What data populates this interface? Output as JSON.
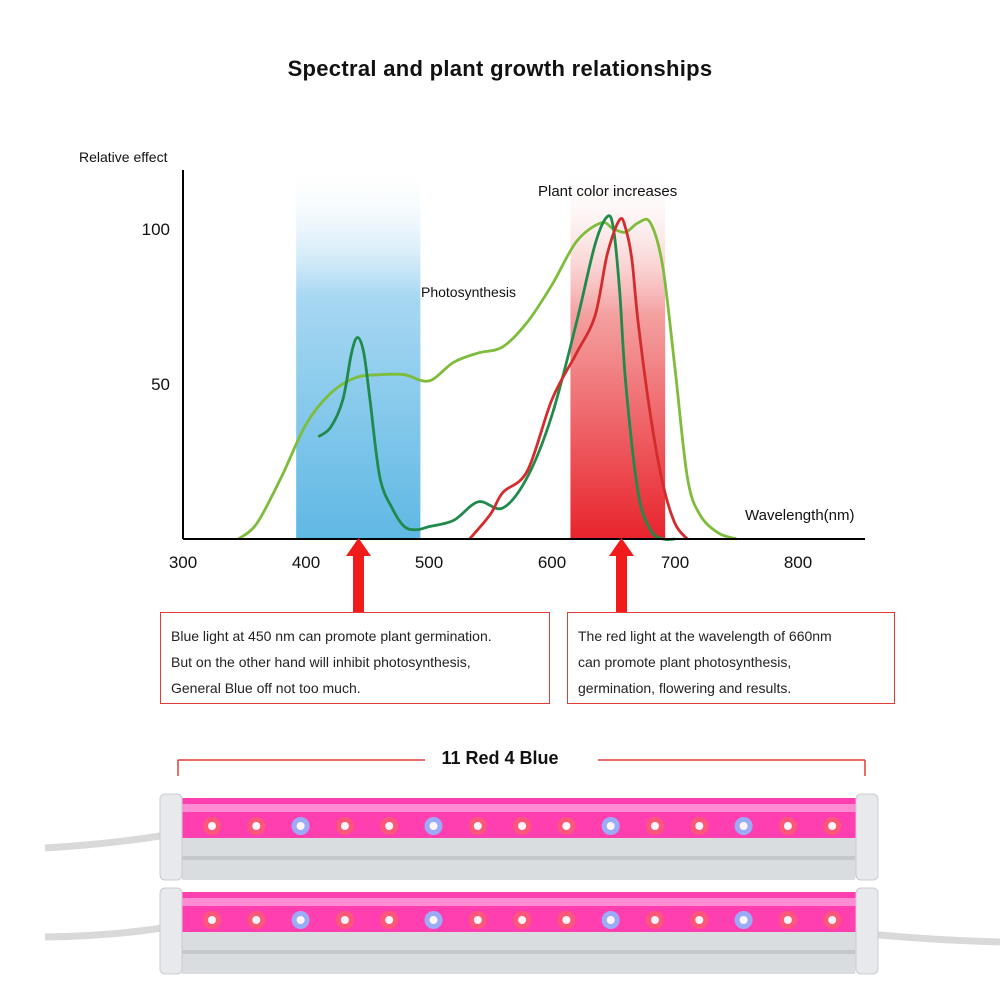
{
  "title": "Spectral and plant growth relationships",
  "chart_data": {
    "type": "line",
    "ylabel": "Relative effect",
    "xlabel": "Wavelength(nm)",
    "xlim": [
      300,
      850
    ],
    "ylim": [
      0,
      110
    ],
    "x_ticks": [
      "300",
      "400",
      "500",
      "600",
      "700",
      "800"
    ],
    "y_ticks": [
      "50",
      "100"
    ],
    "grid": false,
    "bands": [
      {
        "from": 392,
        "to": 493,
        "color": "#5fb8e4"
      },
      {
        "from": 615,
        "to": 692,
        "color": "#e8242d"
      }
    ],
    "series": [
      {
        "color": "#7dbd3b",
        "x": [
          345,
          360,
          380,
          400,
          420,
          440,
          460,
          480,
          500,
          520,
          540,
          560,
          580,
          600,
          620,
          640,
          650,
          660,
          670,
          680,
          690,
          700,
          710,
          720,
          735,
          750
        ],
        "y": [
          0,
          5,
          20,
          37,
          47,
          52,
          53,
          53,
          51,
          57,
          60,
          62,
          70,
          82,
          96,
          102,
          100,
          99,
          102,
          102,
          88,
          55,
          20,
          8,
          2,
          0
        ]
      },
      {
        "name": "Photosynthesis",
        "color": "#1f8a4b",
        "x": [
          410,
          420,
          430,
          437,
          442,
          447,
          452,
          460,
          470,
          480,
          490,
          500,
          520,
          540,
          560,
          580,
          600,
          620,
          635,
          645,
          650,
          655,
          660,
          670,
          680,
          690,
          700
        ],
        "y": [
          33,
          36,
          45,
          60,
          65,
          60,
          45,
          20,
          10,
          4,
          3,
          4,
          6,
          12,
          10,
          20,
          40,
          70,
          95,
          104,
          100,
          80,
          50,
          15,
          3,
          0,
          0
        ]
      },
      {
        "color": "#d42c2c",
        "x": [
          533,
          550,
          560,
          580,
          600,
          620,
          635,
          645,
          655,
          660,
          665,
          670,
          680,
          690,
          700,
          710
        ],
        "y": [
          0,
          8,
          15,
          22,
          45,
          60,
          72,
          92,
          103,
          100,
          90,
          70,
          40,
          18,
          5,
          0
        ]
      }
    ],
    "annotations": [
      "Photosynthesis",
      "Plant color increases"
    ],
    "arrows_at": [
      450,
      660
    ]
  },
  "callouts": {
    "blue": [
      "Blue light at 450 nm can promote plant germination.",
      "But on the other hand will inhibit photosynthesis,",
      "General Blue off not too much."
    ],
    "red": [
      "The red light at the wavelength of 660nm",
      "can promote plant photosynthesis,",
      "germination, flowering and results."
    ]
  },
  "product": {
    "count_label": "11 Red 4 Blue",
    "led_colors": [
      "red",
      "red",
      "blue",
      "red",
      "red",
      "blue",
      "red",
      "red",
      "red",
      "blue",
      "red",
      "red",
      "blue",
      "red",
      "red"
    ],
    "colors": {
      "red": "#ff5a73",
      "blue": "#8fb8ff",
      "tube": "#ff3fb0"
    }
  }
}
